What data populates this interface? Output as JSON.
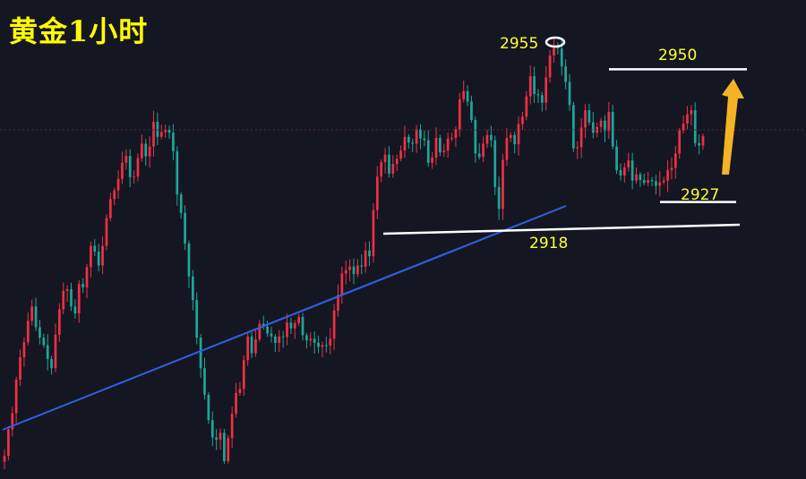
{
  "chart_data": {
    "type": "candlestick",
    "title": "黄金1小时",
    "ylim": [
      2879,
      2962
    ],
    "colors": {
      "background": "#141722",
      "up": "#ef2f45",
      "down": "#1fa59a",
      "trendline": "#2f60e8",
      "levels": "#ffffff",
      "arrow": "#f5b324",
      "labels": "#ffff33"
    },
    "levels": [
      {
        "label": "2955",
        "value": 2955
      },
      {
        "label": "2950",
        "value": 2950
      },
      {
        "label": "2927",
        "value": 2927
      },
      {
        "label": "2918",
        "value": 2918
      }
    ],
    "series_close": [
      2883.0,
      2887.6,
      2890.4,
      2896.2,
      2900.1,
      2902.7,
      2906.4,
      2908.9,
      2905.3,
      2903.5,
      2902.2,
      2899.8,
      2898.2,
      2904.0,
      2908.4,
      2911.6,
      2911.9,
      2908.9,
      2907.7,
      2912.8,
      2912.2,
      2915.7,
      2919.4,
      2918.4,
      2916.0,
      2919.4,
      2924.2,
      2927.5,
      2929.0,
      2931.0,
      2933.8,
      2935.0,
      2931.3,
      2931.4,
      2934.6,
      2937.1,
      2934.9,
      2936.6,
      2940.9,
      2938.3,
      2939.1,
      2939.5,
      2939.0,
      2935.8,
      2928.3,
      2925.1,
      2919.8,
      2914.1,
      2910.0,
      2903.5,
      2898.2,
      2893.6,
      2889.2,
      2886.2,
      2885.8,
      2887.0,
      2882.1,
      2886.1,
      2890.3,
      2893.9,
      2894.6,
      2899.6,
      2903.7,
      2900.8,
      2903.2,
      2905.9,
      2905.4,
      2904.2,
      2903.7,
      2902.6,
      2903.7,
      2903.6,
      2906.1,
      2905.1,
      2906.0,
      2907.1,
      2903.9,
      2903.0,
      2903.3,
      2902.6,
      2901.9,
      2902.2,
      2902.1,
      2903.3,
      2908.2,
      2910.9,
      2914.6,
      2915.2,
      2915.8,
      2914.5,
      2916.0,
      2915.8,
      2918.6,
      2917.6,
      2925.6,
      2931.4,
      2933.9,
      2935.2,
      2931.9,
      2933.6,
      2934.5,
      2935.9,
      2938.3,
      2937.3,
      2937.1,
      2939.6,
      2938.0,
      2937.7,
      2933.8,
      2934.7,
      2938.1,
      2935.6,
      2935.9,
      2938.0,
      2938.1,
      2939.6,
      2944.8,
      2946.2,
      2944.4,
      2941.2,
      2935.4,
      2934.8,
      2937.1,
      2938.6,
      2937.7,
      2929.6,
      2925.8,
      2934.3,
      2938.1,
      2938.6,
      2937.0,
      2940.5,
      2941.8,
      2945.3,
      2948.8,
      2945.7,
      2945.5,
      2944.2,
      2948.6,
      2952.4,
      2954.1,
      2953.6,
      2950.5,
      2947.8,
      2943.8,
      2936.3,
      2936.5,
      2939.9,
      2942.9,
      2940.8,
      2939.0,
      2940.0,
      2941.1,
      2939.3,
      2942.6,
      2936.6,
      2932.5,
      2931.6,
      2933.0,
      2934.2,
      2930.7,
      2931.8,
      2930.8,
      2930.3,
      2930.8,
      2930.6,
      2929.8,
      2930.4,
      2930.7,
      2932.5,
      2932.9,
      2935.4,
      2939.4,
      2940.6,
      2942.2,
      2942.9,
      2937.2,
      2936.8,
      2938.4
    ]
  }
}
